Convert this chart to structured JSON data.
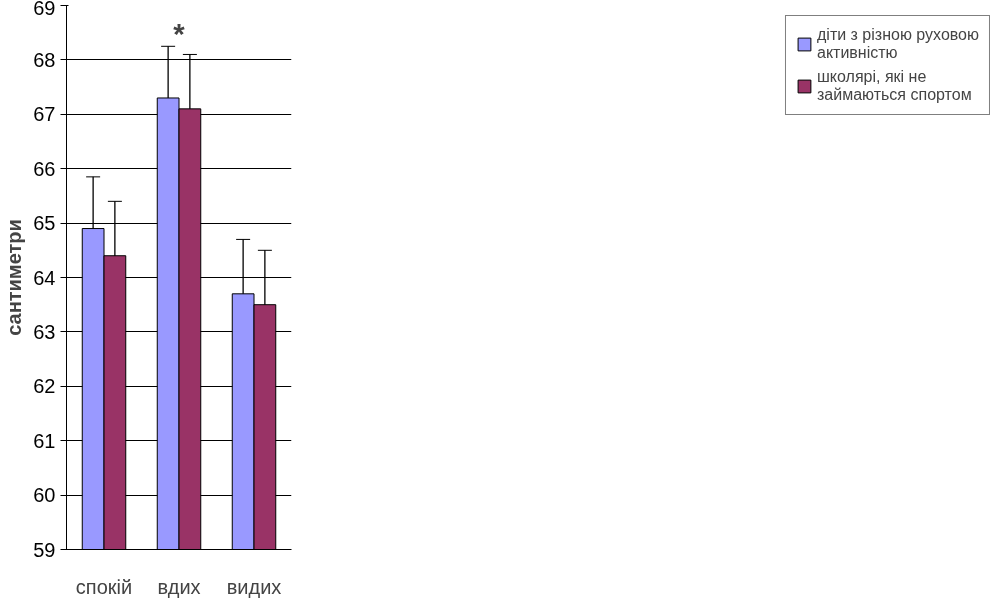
{
  "chart_data": {
    "type": "bar",
    "ylabel": "сантиметри",
    "categories": [
      "спокій",
      "вдих",
      "видих"
    ],
    "series": [
      {
        "name": "діти з різною руховою активністю",
        "color": "#9999ff",
        "values": [
          64.9,
          67.3,
          63.7
        ],
        "errors": [
          0.95,
          0.95,
          1.0
        ]
      },
      {
        "name": "школярі, які не займаються спортом",
        "color": "#993366",
        "values": [
          64.4,
          67.1,
          63.5
        ],
        "errors": [
          1.0,
          1.0,
          1.0
        ]
      }
    ],
    "ylim": [
      59,
      69
    ],
    "yticks": [
      59,
      60,
      61,
      62,
      63,
      64,
      65,
      66,
      67,
      68,
      69
    ],
    "grid": "y",
    "legend": "right",
    "annotations": [
      "*"
    ]
  }
}
